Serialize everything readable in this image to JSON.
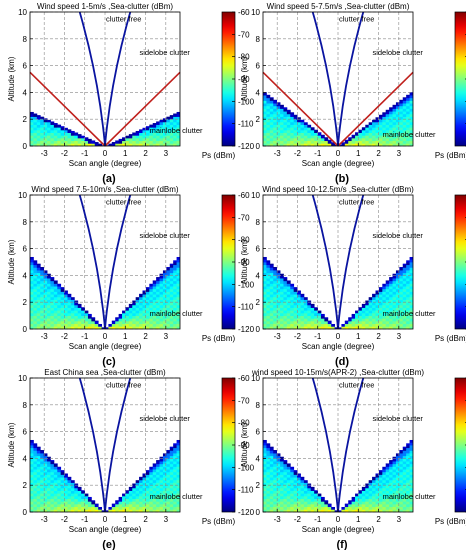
{
  "figure": {
    "cmap_min": -120,
    "cmap_max": -60,
    "cmap_ticks": [
      -60,
      -70,
      -80,
      -90,
      -100,
      -110,
      -120
    ],
    "colors": {
      "boundary": "#0a14a0",
      "reference_line": "#c0201c",
      "axis": "#000000",
      "grid": "#888888"
    }
  },
  "chart_data": [
    {
      "panel_label": "(a)",
      "type": "heatmap",
      "title": "Wind speed 1-5m/s ,Sea-clutter (dBm)",
      "xlabel": "Scan angle (degree)",
      "ylabel": "Altitude (km)",
      "colorbar_label": "Ps (dBm)",
      "xlim": [
        -3.7,
        3.7
      ],
      "ylim": [
        0,
        10
      ],
      "xticks": [
        -3,
        -2,
        -1,
        0,
        1,
        2,
        3
      ],
      "yticks": [
        0,
        2,
        4,
        6,
        8,
        10
      ],
      "grid": true,
      "clutter_edge_altitude_km": 2.6,
      "red_line_end_altitude_km": 5.5,
      "annotations": [
        {
          "text": "clutter free",
          "x": 0.05,
          "y": 9.5
        },
        {
          "text": "sidelobe clutter",
          "x": 1.7,
          "y": 7.0
        },
        {
          "text": "mainlobe clutter",
          "x": 2.2,
          "y": 1.2
        }
      ]
    },
    {
      "panel_label": "(b)",
      "type": "heatmap",
      "title": "Wind speed 5-7.5m/s ,Sea-clutter (dBm)",
      "xlabel": "Scan angle (degree)",
      "ylabel": "Altitude (km)",
      "colorbar_label": "Ps (dBm)",
      "xlim": [
        -3.7,
        3.7
      ],
      "ylim": [
        0,
        10
      ],
      "xticks": [
        -3,
        -2,
        -1,
        0,
        1,
        2,
        3
      ],
      "yticks": [
        0,
        2,
        4,
        6,
        8,
        10
      ],
      "grid": true,
      "clutter_edge_altitude_km": 4.1,
      "red_line_end_altitude_km": 5.5,
      "annotations": [
        {
          "text": "clutter free",
          "x": 0.05,
          "y": 9.5
        },
        {
          "text": "sidelobe clutter",
          "x": 1.7,
          "y": 7.0
        },
        {
          "text": "mainlobe clutter",
          "x": 2.2,
          "y": 0.9
        }
      ]
    },
    {
      "panel_label": "(c)",
      "type": "heatmap",
      "title": "Wind speed 7.5-10m/s ,Sea-clutter (dBm)",
      "xlabel": "Scan angle (degree)",
      "ylabel": "Altitude (km)",
      "colorbar_label": "Ps (dBm)",
      "xlim": [
        -3.7,
        3.7
      ],
      "ylim": [
        0,
        10
      ],
      "xticks": [
        -3,
        -2,
        -1,
        0,
        1,
        2,
        3
      ],
      "yticks": [
        0,
        2,
        4,
        6,
        8,
        10
      ],
      "grid": true,
      "clutter_edge_altitude_km": 5.5,
      "red_line_end_altitude_km": null,
      "annotations": [
        {
          "text": "clutter free",
          "x": 0.05,
          "y": 9.5
        },
        {
          "text": "sidelobe clutter",
          "x": 1.7,
          "y": 7.0
        },
        {
          "text": "mainlobe clutter",
          "x": 2.2,
          "y": 1.2
        }
      ]
    },
    {
      "panel_label": "(d)",
      "type": "heatmap",
      "title": "Wind speed 10-12.5m/s ,Sea-clutter (dBm)",
      "xlabel": "Scan angle (degree)",
      "ylabel": "Altitude (km)",
      "colorbar_label": "Ps (dBm)",
      "xlim": [
        -3.7,
        3.7
      ],
      "ylim": [
        0,
        10
      ],
      "xticks": [
        -3,
        -2,
        -1,
        0,
        1,
        2,
        3
      ],
      "yticks": [
        0,
        2,
        4,
        6,
        8,
        10
      ],
      "grid": true,
      "clutter_edge_altitude_km": 5.5,
      "red_line_end_altitude_km": null,
      "annotations": [
        {
          "text": "clutter free",
          "x": 0.05,
          "y": 9.5
        },
        {
          "text": "sidelobe clutter",
          "x": 1.7,
          "y": 7.0
        },
        {
          "text": "mainlobe clutter",
          "x": 2.2,
          "y": 1.2
        }
      ]
    },
    {
      "panel_label": "(e)",
      "type": "heatmap",
      "title": "East China sea ,Sea-clutter (dBm)",
      "xlabel": "Scan angle (degree)",
      "ylabel": "Altitude (km)",
      "colorbar_label": "Ps (dBm)",
      "xlim": [
        -3.7,
        3.7
      ],
      "ylim": [
        0,
        10
      ],
      "xticks": [
        -3,
        -2,
        -1,
        0,
        1,
        2,
        3
      ],
      "yticks": [
        0,
        2,
        4,
        6,
        8,
        10
      ],
      "grid": true,
      "clutter_edge_altitude_km": 5.5,
      "red_line_end_altitude_km": null,
      "annotations": [
        {
          "text": "clutter free",
          "x": 0.05,
          "y": 9.5
        },
        {
          "text": "sidelobe clutter",
          "x": 1.7,
          "y": 7.0
        },
        {
          "text": "mainlobe clutter",
          "x": 2.2,
          "y": 1.2
        }
      ]
    },
    {
      "panel_label": "(f)",
      "type": "heatmap",
      "title": "wind speed 10-15m/s(APR-2) ,Sea-clutter (dBm)",
      "xlabel": "Scan angle (degree)",
      "ylabel": "Altitude (km)",
      "colorbar_label": "Ps (dBm)",
      "xlim": [
        -3.7,
        3.7
      ],
      "ylim": [
        0,
        10
      ],
      "xticks": [
        -3,
        -2,
        -1,
        0,
        1,
        2,
        3
      ],
      "yticks": [
        0,
        2,
        4,
        6,
        8,
        10
      ],
      "grid": true,
      "clutter_edge_altitude_km": 5.5,
      "red_line_end_altitude_km": null,
      "annotations": [
        {
          "text": "clutter free",
          "x": 0.05,
          "y": 9.5
        },
        {
          "text": "sidelobe clutter",
          "x": 1.7,
          "y": 7.0
        },
        {
          "text": "mainlobe clutter",
          "x": 2.2,
          "y": 1.2
        }
      ]
    }
  ]
}
